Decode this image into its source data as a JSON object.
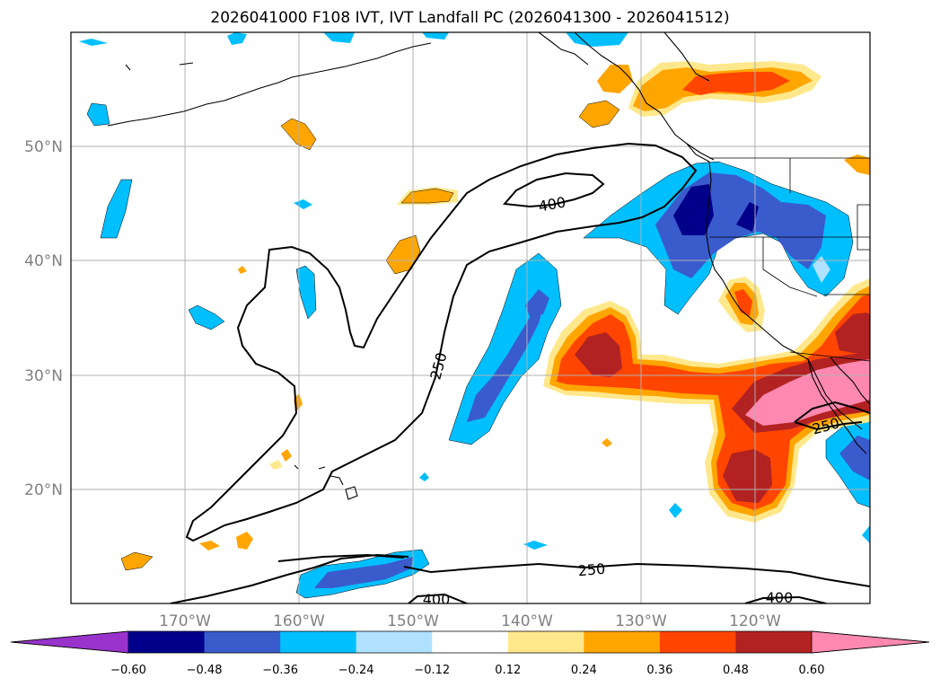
{
  "title": "2026041000 F108 IVT, IVT Landfall PC (2026041300 - 2026041512)",
  "map": {
    "lon_range": [
      -180,
      -110
    ],
    "lat_range": [
      10,
      60
    ],
    "lon_ticks": [
      "170°W",
      "160°W",
      "150°W",
      "140°W",
      "130°W",
      "120°W"
    ],
    "lat_ticks": [
      "50°N",
      "40°N",
      "30°N",
      "20°N"
    ],
    "gridlines": true,
    "contour_labels": [
      "400",
      "250",
      "250",
      "250",
      "400",
      "400"
    ]
  },
  "colorbar": {
    "levels": [
      "−0.60",
      "−0.48",
      "−0.36",
      "−0.24",
      "−0.12",
      "0.12",
      "0.24",
      "0.36",
      "0.48",
      "0.60"
    ],
    "colors": [
      "#9933cc",
      "#00008b",
      "#3a5bcc",
      "#00bfff",
      "#b0e2ff",
      "#ffffff",
      "#ffe88c",
      "#ffa500",
      "#ff4500",
      "#b22222",
      "#ff88b0"
    ],
    "extend": "both"
  }
}
